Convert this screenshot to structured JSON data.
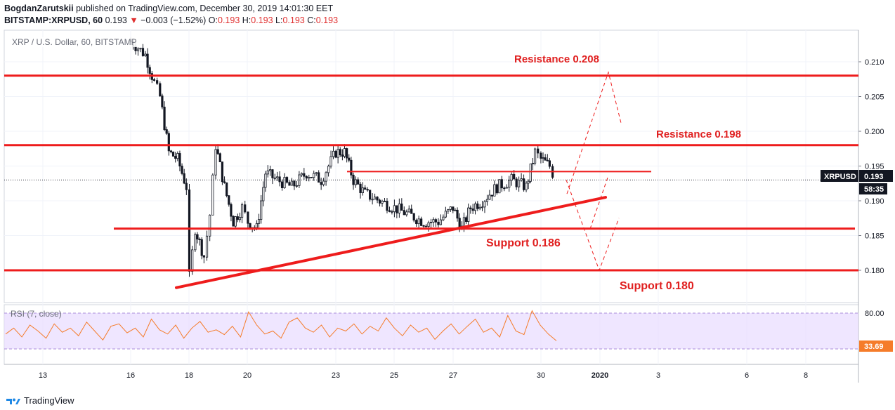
{
  "header": {
    "author": "BogdanZarutskii",
    "published_text": "published on TradingView.com, December 30, 2019 14:01:30 EET",
    "symbol": "BITSTAMP:XRPUSD, 60",
    "last": "0.193",
    "change_arrow": "▼",
    "change": "−0.003 (−1.52%)",
    "o_label": "O:",
    "o_value": "0.193",
    "h_label": "H:",
    "h_value": "0.193",
    "l_label": "L:",
    "l_value": "0.193",
    "c_label": "C:",
    "c_value": "0.193"
  },
  "watermark": "XRP / U.S. Dollar, 60, BITSTAMP",
  "rsi_label": "RSI (7, close)",
  "price_axis_ticks": [
    "0.210",
    "0.205",
    "0.200",
    "0.195",
    "0.190",
    "0.185",
    "0.180"
  ],
  "rsi_axis_ticks": [
    "80.00"
  ],
  "rsi_value_badge": "33.69",
  "price_badge_symbol": "XRPUSD",
  "price_badge_value": "0.193",
  "countdown_badge": "58:35",
  "time_axis_labels": [
    "13",
    "16",
    "18",
    "20",
    "23",
    "25",
    "27",
    "30",
    "2020",
    "3",
    "6",
    "8"
  ],
  "annotations": {
    "resistance_1": "Resistance 0.208",
    "resistance_2": "Resistance 0.198",
    "support_1": "Support 0.186",
    "support_2": "Support 0.180"
  },
  "footer": {
    "brand": "TradingView"
  },
  "colors": {
    "candle": "#131722",
    "level_line": "#ee1c1c",
    "annotation_text": "#e02020",
    "rsi_line": "#f57c2a",
    "rsi_band": "#e8dcff",
    "badge_bg": "#131722",
    "rsi_badge_bg": "#f57c2a"
  },
  "chart_data": [
    {
      "type": "candlestick",
      "title": "XRP / U.S. Dollar, 60, BITSTAMP",
      "x": [
        "13",
        "16",
        "18",
        "20",
        "23",
        "25",
        "27",
        "30",
        "2020",
        "3",
        "6",
        "8"
      ],
      "ylim": [
        0.176,
        0.214
      ],
      "path_points": [
        [
          "16",
          0.213
        ],
        [
          "16.5",
          0.211
        ],
        [
          "16.8",
          0.207
        ],
        [
          "17",
          0.205
        ],
        [
          "17.3",
          0.197
        ],
        [
          "17.6",
          0.196
        ],
        [
          "17.9",
          0.192
        ],
        [
          "18",
          0.179
        ],
        [
          "18.2",
          0.186
        ],
        [
          "18.5",
          0.182
        ],
        [
          "18.7",
          0.188
        ],
        [
          "18.9",
          0.198
        ],
        [
          "19.2",
          0.192
        ],
        [
          "19.5",
          0.187
        ],
        [
          "19.8",
          0.189
        ],
        [
          "20",
          0.187
        ],
        [
          "20.3",
          0.186
        ],
        [
          "20.6",
          0.194
        ],
        [
          "21",
          0.193
        ],
        [
          "21.5",
          0.192
        ],
        [
          "22",
          0.194
        ],
        [
          "22.5",
          0.193
        ],
        [
          "23",
          0.197
        ],
        [
          "23.3",
          0.197
        ],
        [
          "23.6",
          0.193
        ],
        [
          "24",
          0.191
        ],
        [
          "24.5",
          0.19
        ],
        [
          "25",
          0.189
        ],
        [
          "25.5",
          0.188
        ],
        [
          "26",
          0.187
        ],
        [
          "26.5",
          0.187
        ],
        [
          "27",
          0.189
        ],
        [
          "27.3",
          0.186
        ],
        [
          "27.6",
          0.189
        ],
        [
          "28",
          0.19
        ],
        [
          "28.5",
          0.192
        ],
        [
          "29",
          0.193
        ],
        [
          "29.5",
          0.192
        ],
        [
          "29.8",
          0.197
        ],
        [
          "30",
          0.196
        ],
        [
          "30.3",
          0.195
        ],
        [
          "30.5",
          0.193
        ]
      ],
      "last_price": 0.193,
      "horizontal_levels": [
        0.208,
        0.198,
        0.1942,
        0.186,
        0.18
      ],
      "trendline": {
        "from": [
          "17.9",
          0.1775
        ],
        "to": [
          "2020",
          0.1905
        ]
      },
      "projection_dashed": [
        [
          [
            "30.6",
            0.191
          ],
          [
            "2020",
            0.2085
          ],
          [
            "2020.3",
            0.2012
          ]
        ],
        [
          [
            "30.6",
            0.193
          ],
          [
            "2020",
            0.18
          ],
          [
            "2020.3",
            0.1875
          ]
        ]
      ]
    },
    {
      "type": "line",
      "title": "RSI (7, close)",
      "band": [
        20,
        80
      ],
      "last_value": 33.69,
      "series": [
        {
          "values": [
            45,
            55,
            40,
            60,
            50,
            38,
            62,
            48,
            55,
            42,
            65,
            50,
            35,
            58,
            62,
            47,
            55,
            40,
            70,
            52,
            45,
            60,
            38,
            55,
            66,
            48,
            52,
            44,
            58,
            40,
            82,
            60,
            45,
            50,
            38,
            65,
            72,
            55,
            48,
            60,
            40,
            55,
            50,
            62,
            45,
            58,
            50,
            72,
            55,
            42,
            60,
            48,
            55,
            36,
            50,
            62,
            45,
            58,
            70,
            48,
            55,
            40,
            76,
            50,
            44,
            84,
            60,
            45,
            33.69
          ]
        }
      ]
    }
  ]
}
